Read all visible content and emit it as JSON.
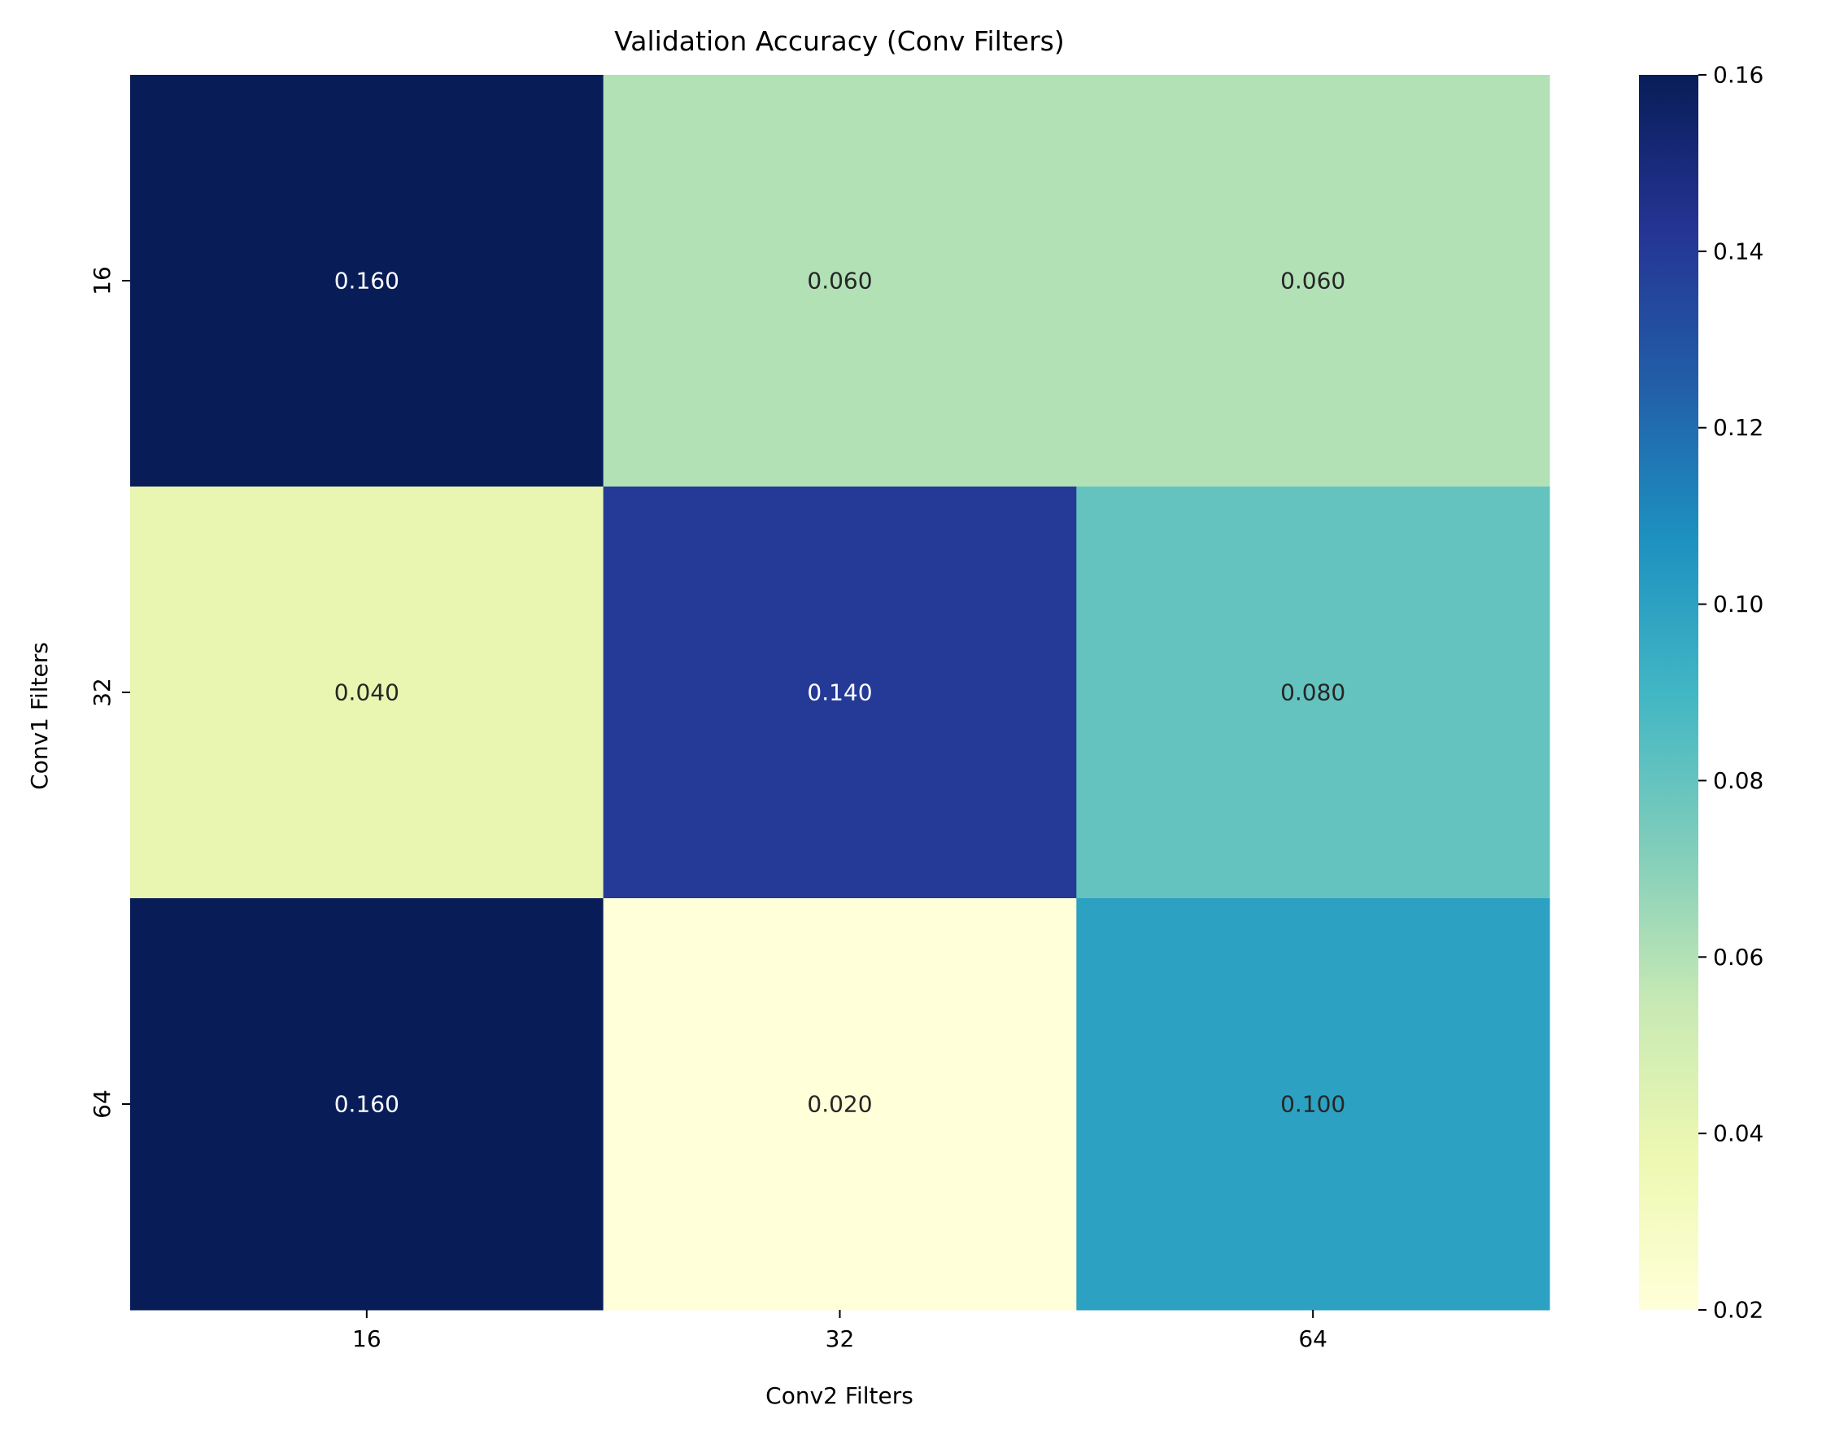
{
  "chart_data": {
    "type": "heatmap",
    "title": "Validation Accuracy (Conv Filters)",
    "xlabel": "Conv2 Filters",
    "ylabel": "Conv1 Filters",
    "x_categories": [
      "16",
      "32",
      "64"
    ],
    "y_categories": [
      "16",
      "32",
      "64"
    ],
    "values": [
      [
        0.16,
        0.06,
        0.06
      ],
      [
        0.04,
        0.14,
        0.08
      ],
      [
        0.16,
        0.02,
        0.1
      ]
    ],
    "cell_labels": [
      [
        "0.160",
        "0.060",
        "0.060"
      ],
      [
        "0.040",
        "0.140",
        "0.080"
      ],
      [
        "0.160",
        "0.020",
        "0.100"
      ]
    ],
    "colorbar": {
      "colormap": "YlGnBu",
      "range": [
        0.02,
        0.16
      ],
      "ticks": [
        "0.02",
        "0.04",
        "0.06",
        "0.08",
        "0.10",
        "0.12",
        "0.14",
        "0.16"
      ]
    },
    "colormap_stops": [
      "#ffffd9",
      "#edf8b1",
      "#c7e9b4",
      "#7fcdbb",
      "#41b6c4",
      "#1d91c0",
      "#225ea8",
      "#253494",
      "#081d58"
    ]
  }
}
